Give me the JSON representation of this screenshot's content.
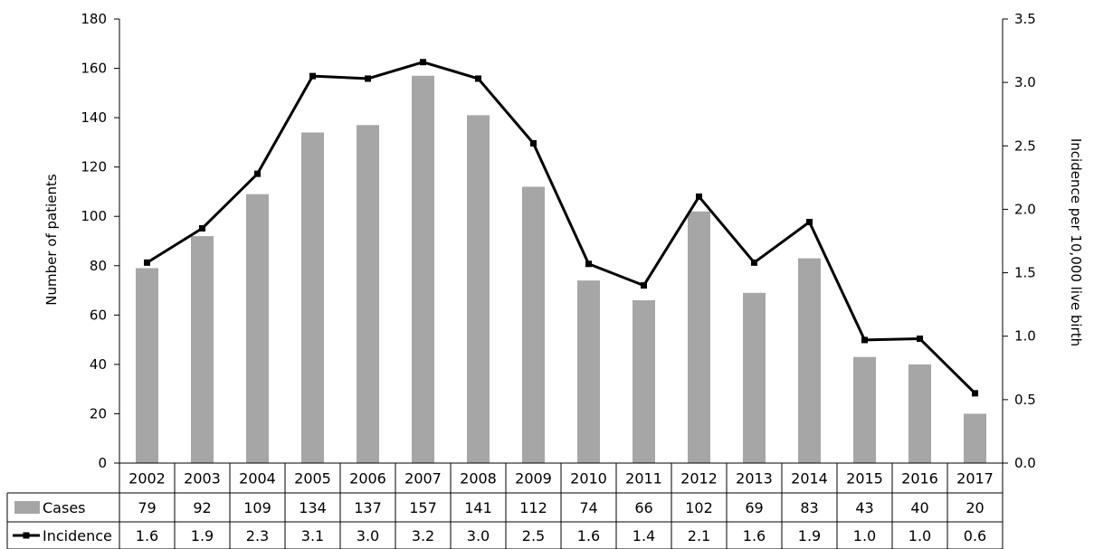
{
  "chart_data": {
    "type": "bar",
    "categories": [
      "2002",
      "2003",
      "2004",
      "2005",
      "2006",
      "2007",
      "2008",
      "2009",
      "2010",
      "2011",
      "2012",
      "2013",
      "2014",
      "2015",
      "2016",
      "2017"
    ],
    "series": [
      {
        "name": "Cases",
        "type": "bar",
        "axis": "left",
        "values": [
          79,
          92,
          109,
          134,
          137,
          157,
          141,
          112,
          74,
          66,
          102,
          69,
          83,
          43,
          40,
          20
        ]
      },
      {
        "name": "Incidence",
        "type": "line",
        "axis": "right",
        "values": [
          1.6,
          1.9,
          2.3,
          3.1,
          3.0,
          3.2,
          3.0,
          2.5,
          1.6,
          1.4,
          2.1,
          1.6,
          1.9,
          1.0,
          1.0,
          0.6
        ],
        "line_values": [
          1.58,
          1.85,
          2.28,
          3.05,
          3.03,
          3.16,
          3.03,
          2.52,
          1.57,
          1.4,
          2.1,
          1.58,
          1.9,
          0.97,
          0.98,
          0.55
        ]
      }
    ],
    "ylabel": "Number of patients",
    "ylim": [
      0,
      180
    ],
    "yticks": [
      "0",
      "20",
      "40",
      "60",
      "80",
      "100",
      "120",
      "140",
      "160",
      "180"
    ],
    "y2label": "Incidence per 10,000 live birth",
    "y2lim": [
      0,
      3.5
    ],
    "y2ticks": [
      "0.0",
      "0.5",
      "1.0",
      "1.5",
      "2.0",
      "2.5",
      "3.0",
      "3.5"
    ],
    "table": {
      "rows": [
        {
          "label": "Cases",
          "values": [
            "79",
            "92",
            "109",
            "134",
            "137",
            "157",
            "141",
            "112",
            "74",
            "66",
            "102",
            "69",
            "83",
            "43",
            "40",
            "20"
          ]
        },
        {
          "label": "Incidence",
          "values": [
            "1.6",
            "1.9",
            "2.3",
            "3.1",
            "3.0",
            "3.2",
            "3.0",
            "2.5",
            "1.6",
            "1.4",
            "2.1",
            "1.6",
            "1.9",
            "1.0",
            "1.0",
            "0.6"
          ]
        }
      ]
    },
    "colors": {
      "bar": "#a6a6a6",
      "line": "#000000",
      "grid": "#000000"
    },
    "grid": false,
    "legend": "data-table"
  }
}
